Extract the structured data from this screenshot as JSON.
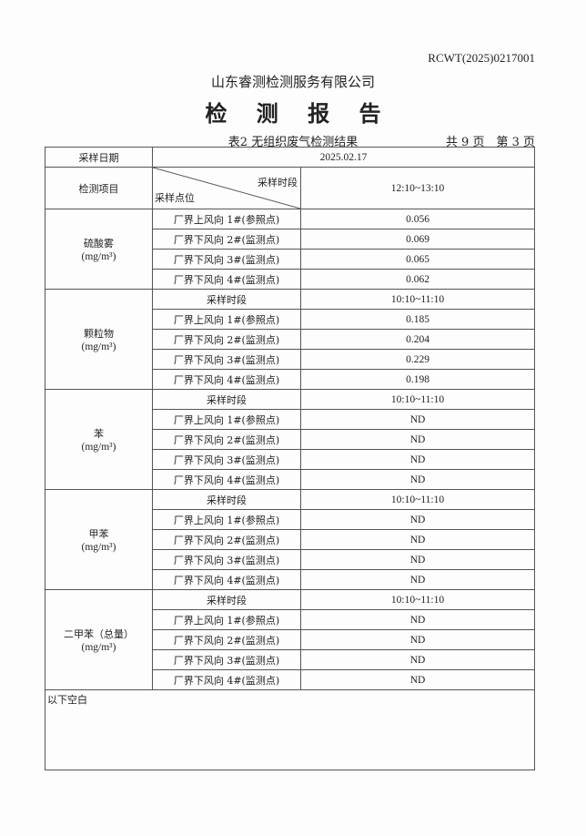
{
  "report_code": "RCWT(2025)0217001",
  "company": "山东睿测检测服务有限公司",
  "title": "检 测 报 告",
  "caption": "表2 无组织废气检测结果",
  "pages": "共 9 页　第 3 页",
  "table": {
    "date_label": "采样日期",
    "date": "2025.02.17",
    "item_label": "检测项目",
    "period_label": "采样时段",
    "point_label": "采样点位",
    "first_period": "12:10~13:10",
    "groups": [
      {
        "name": "硫酸雾",
        "unit": "(mg/m³)",
        "rows": [
          [
            "厂界上风向 1#(参照点)",
            "0.056"
          ],
          [
            "厂界下风向 2#(监测点)",
            "0.069"
          ],
          [
            "厂界下风向 3#(监测点)",
            "0.065"
          ],
          [
            "厂界下风向 4#(监测点)",
            "0.062"
          ]
        ]
      },
      {
        "name": "颗粒物",
        "unit": "(mg/m³)",
        "period": "10:10~11:10",
        "rows": [
          [
            "厂界上风向 1#(参照点)",
            "0.185"
          ],
          [
            "厂界下风向 2#(监测点)",
            "0.204"
          ],
          [
            "厂界下风向 3#(监测点)",
            "0.229"
          ],
          [
            "厂界下风向 4#(监测点)",
            "0.198"
          ]
        ]
      },
      {
        "name": "苯",
        "unit": "(mg/m³)",
        "period": "10:10~11:10",
        "rows": [
          [
            "厂界上风向 1#(参照点)",
            "ND"
          ],
          [
            "厂界下风向 2#(监测点)",
            "ND"
          ],
          [
            "厂界下风向 3#(监测点)",
            "ND"
          ],
          [
            "厂界下风向 4#(监测点)",
            "ND"
          ]
        ]
      },
      {
        "name": "甲苯",
        "unit": "(mg/m³)",
        "period": "10:10~11:10",
        "rows": [
          [
            "厂界上风向 1#(参照点)",
            "ND"
          ],
          [
            "厂界下风向 2#(监测点)",
            "ND"
          ],
          [
            "厂界下风向 3#(监测点)",
            "ND"
          ],
          [
            "厂界下风向 4#(监测点)",
            "ND"
          ]
        ]
      },
      {
        "name": "二甲苯（总量）",
        "unit": "(mg/m³)",
        "period": "10:10~11:10",
        "rows": [
          [
            "厂界上风向 1#(参照点)",
            "ND"
          ],
          [
            "厂界下风向 2#(监测点)",
            "ND"
          ],
          [
            "厂界下风向 3#(监测点)",
            "ND"
          ],
          [
            "厂界下风向 4#(监测点)",
            "ND"
          ]
        ]
      }
    ],
    "footer": "以下空白"
  }
}
